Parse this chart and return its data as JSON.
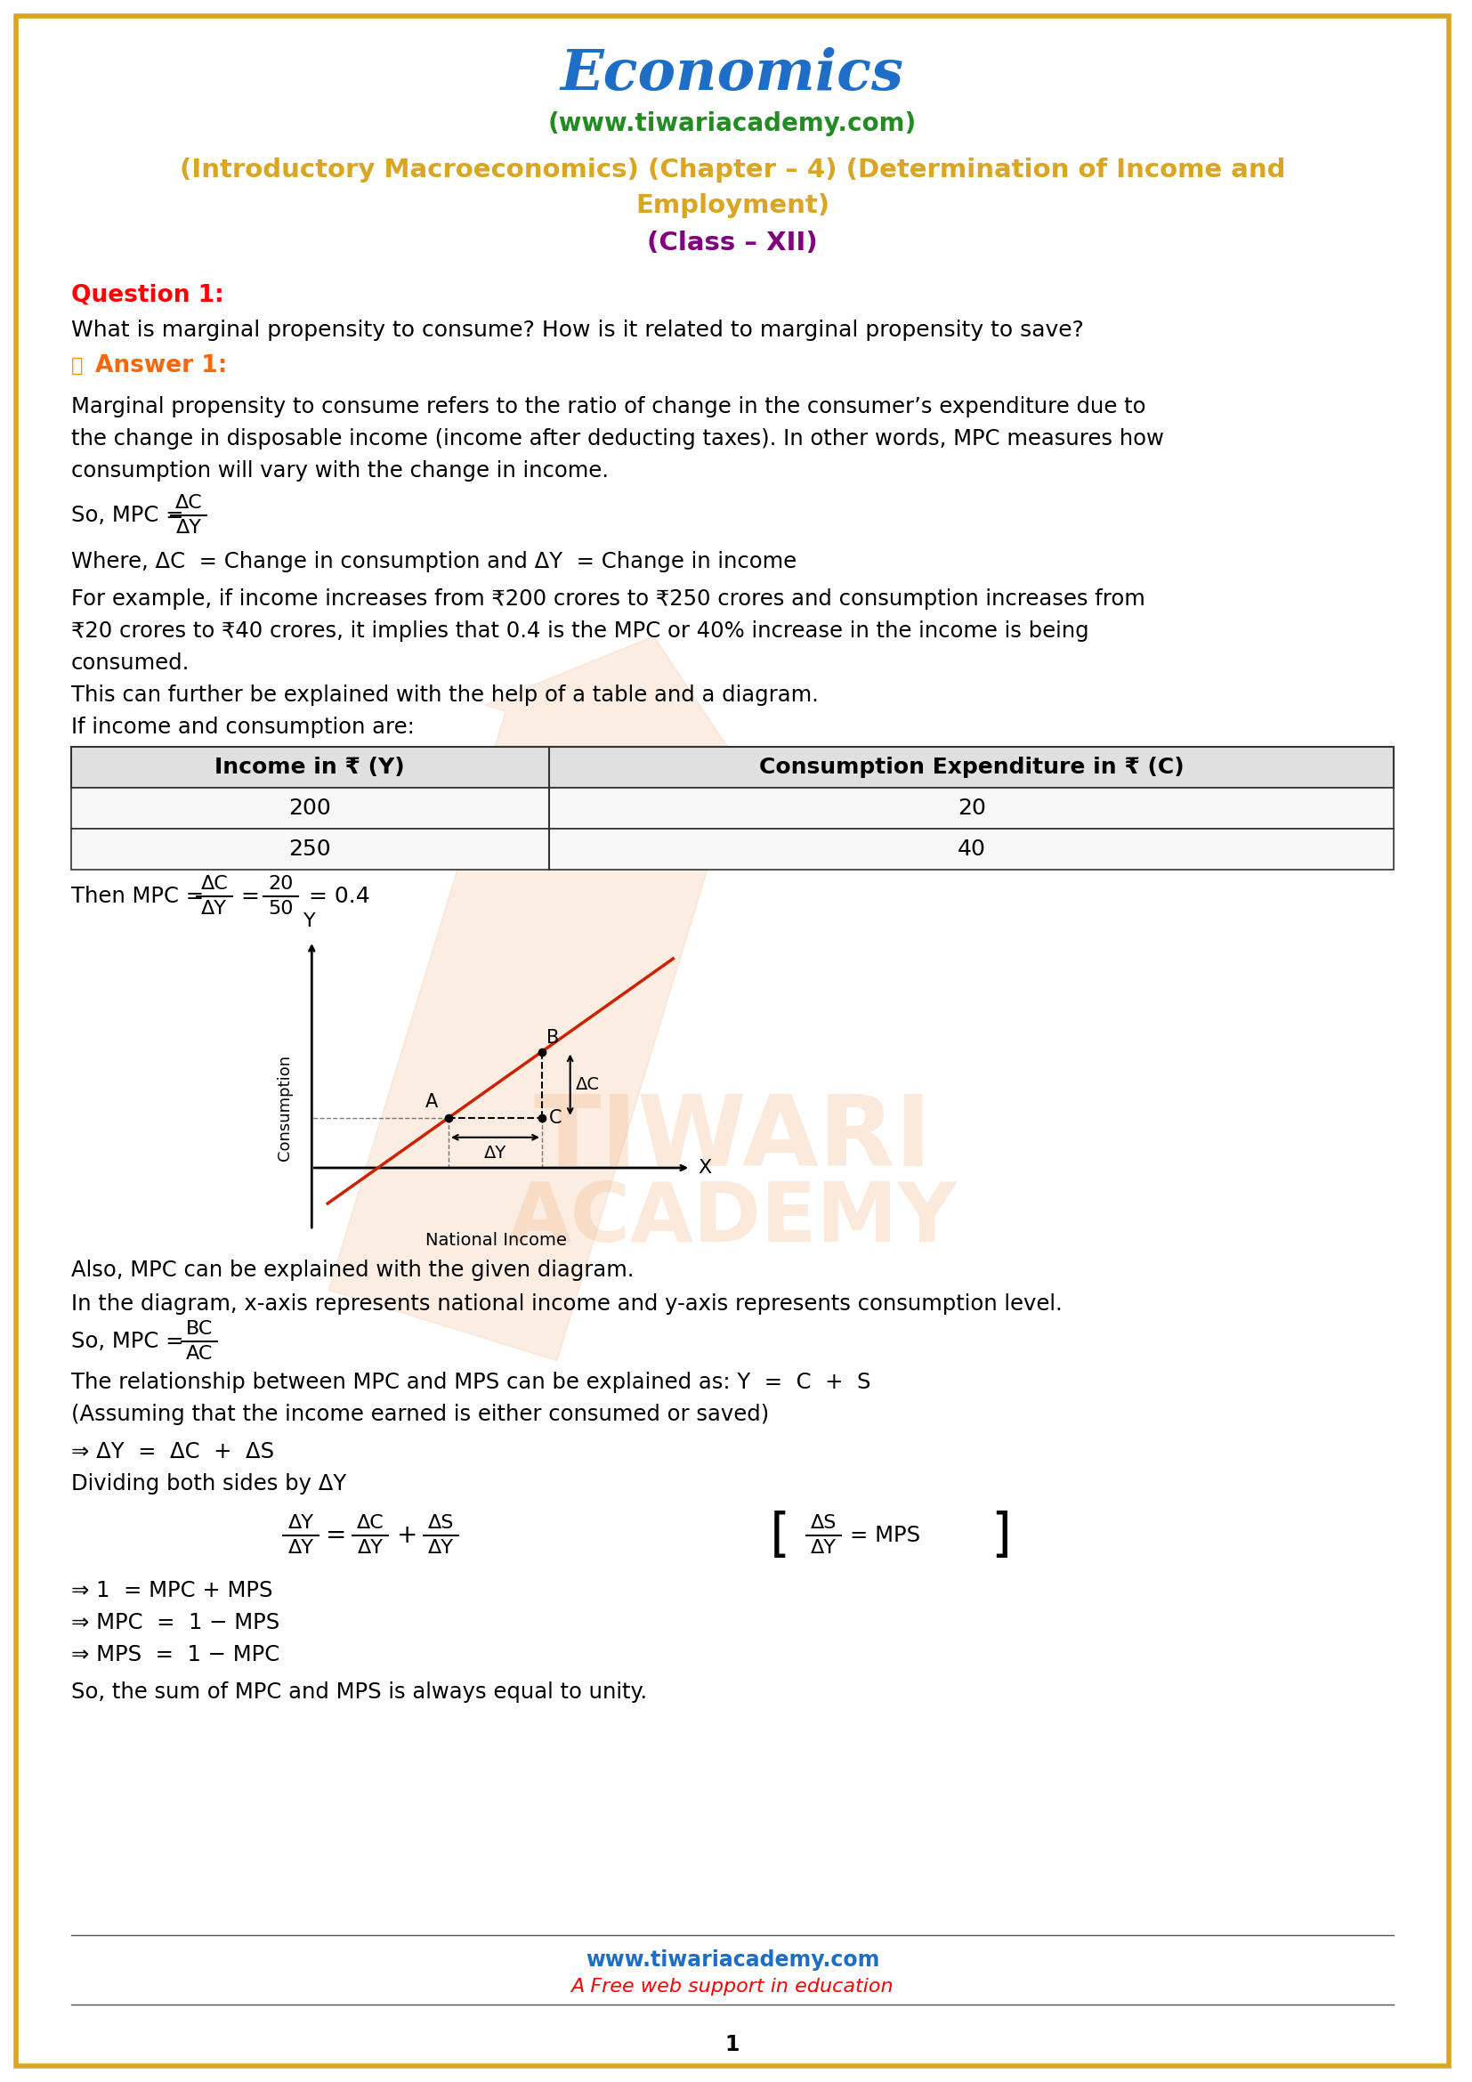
{
  "title": "Economics",
  "subtitle": "(www.tiwariacademy.com)",
  "chapter_line1": "(Introductory Macroeconomics) (Chapter – 4) (Determination of Income and",
  "chapter_line2": "Employment)",
  "class_line": "(Class – XII)",
  "question_label": "Question 1:",
  "question_text": "What is marginal propensity to consume? How is it related to marginal propensity to save?",
  "answer_label": "Answer 1:",
  "para1_line1": "Marginal propensity to consume refers to the ratio of change in the consumer’s expenditure due to",
  "para1_line2": "the change in disposable income (income after deducting taxes). In other words, MPC measures how",
  "para1_line3": "consumption will vary with the change in income.",
  "where_line": "Where, ΔC  = Change in consumption and ΔY  = Change in income",
  "example_line1": "For example, if income increases from ₹200 crores to ₹250 crores and consumption increases from",
  "example_line2": "₹20 crores to ₹40 crores, it implies that 0.4 is the MPC or 40% increase in the income is being",
  "example_line3": "consumed.",
  "explain_line": "This can further be explained with the help of a table and a diagram.",
  "if_line": "If income and consumption are:",
  "table_header1": "Income in ₹ (Y)",
  "table_header2": "Consumption Expenditure in ₹ (C)",
  "table_row1_col1": "200",
  "table_row1_col2": "20",
  "table_row2_col1": "250",
  "table_row2_col2": "40",
  "also_line": "Also, MPC can be explained with the given diagram.",
  "diagram_line": "In the diagram, x-axis represents national income and y-axis represents consumption level.",
  "relation_line": "The relationship between MPC and MPS can be explained as: Y  =  C  +  S",
  "assuming_line": "(Assuming that the income earned is either consumed or saved)",
  "delta_line": "⇒ ΔY  =  ΔC  +  ΔS",
  "dividing_line": "Dividing both sides by ΔY",
  "result1": "⇒ 1  = MPC + MPS",
  "result2": "⇒ MPC  =  1 − MPS",
  "result3": "⇒ MPS  =  1 − MPC",
  "conclusion": "So, the sum of MPC and MPS is always equal to unity.",
  "footer_web": "www.tiwariacademy.com",
  "footer_tagline": "A Free web support in education",
  "page_num": "1",
  "border_color": "#DAA520",
  "title_color": "#1E6EC8",
  "subtitle_color": "#228B22",
  "chapter_color": "#DAA520",
  "class_color": "#800080",
  "question_color": "#FF0000",
  "answer_color": "#FF6600",
  "body_color": "#000000",
  "footer_web_color": "#1E6EC8",
  "footer_tag_color": "#FF0000",
  "bg_color": "#FFFFFF"
}
